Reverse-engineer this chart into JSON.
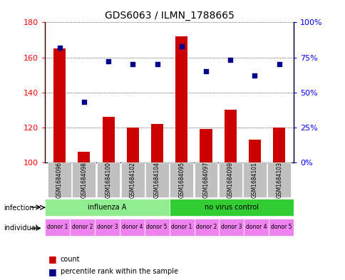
{
  "title": "GDS6063 / ILMN_1788665",
  "samples": [
    "GSM1684096",
    "GSM1684098",
    "GSM1684100",
    "GSM1684102",
    "GSM1684104",
    "GSM1684095",
    "GSM1684097",
    "GSM1684099",
    "GSM1684101",
    "GSM1684103"
  ],
  "counts": [
    165,
    106,
    126,
    120,
    122,
    172,
    119,
    130,
    113,
    120
  ],
  "percentiles": [
    82,
    43,
    72,
    70,
    70,
    83,
    65,
    73,
    62,
    70
  ],
  "ylim_left": [
    100,
    180
  ],
  "ylim_right": [
    0,
    100
  ],
  "yticks_left": [
    100,
    120,
    140,
    160,
    180
  ],
  "yticks_right": [
    0,
    25,
    50,
    75,
    100
  ],
  "ytick_labels_right": [
    "0%",
    "25%",
    "50%",
    "75%",
    "100%"
  ],
  "infection_groups": [
    {
      "label": "influenza A",
      "start": 0,
      "end": 5,
      "color": "#90EE90"
    },
    {
      "label": "no virus control",
      "start": 5,
      "end": 10,
      "color": "#32CD32"
    }
  ],
  "individual_labels": [
    "donor 1",
    "donor 2",
    "donor 3",
    "donor 4",
    "donor 5",
    "donor 1",
    "donor 2",
    "donor 3",
    "donor 4",
    "donor 5"
  ],
  "individual_color": "#EE82EE",
  "bar_color": "#CC0000",
  "dot_color": "#00008B",
  "sample_bg_color": "#C0C0C0",
  "legend_count_color": "#CC0000",
  "legend_dot_color": "#00008B",
  "infection_label": "infection",
  "individual_label": "individual"
}
